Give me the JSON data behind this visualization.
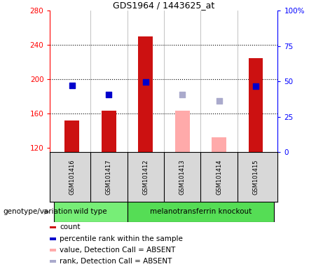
{
  "title": "GDS1964 / 1443625_at",
  "samples": [
    "GSM101416",
    "GSM101417",
    "GSM101412",
    "GSM101413",
    "GSM101414",
    "GSM101415"
  ],
  "sample_x": [
    1,
    2,
    3,
    4,
    5,
    6
  ],
  "bar_heights": [
    152,
    163,
    250,
    null,
    null,
    225
  ],
  "bar_absent_heights": [
    null,
    null,
    null,
    163,
    132,
    null
  ],
  "bar_color_present": "#cc1111",
  "bar_color_absent": "#ffaaaa",
  "dot_present": [
    193,
    182,
    197,
    null,
    null,
    192
  ],
  "dot_absent": [
    null,
    null,
    null,
    182,
    175,
    null
  ],
  "dot_color_present": "#0000cc",
  "dot_color_absent": "#aaaacc",
  "ylim_left": [
    115,
    280
  ],
  "ylim_right": [
    0,
    100
  ],
  "yticks_left": [
    120,
    160,
    200,
    240,
    280
  ],
  "yticks_right": [
    0,
    25,
    50,
    75,
    100
  ],
  "ytick_labels_left": [
    "120",
    "160",
    "200",
    "240",
    "280"
  ],
  "ytick_labels_right": [
    "0",
    "25",
    "50",
    "75",
    "100%"
  ],
  "hlines": [
    160,
    200,
    240
  ],
  "bar_width": 0.4,
  "group_labels": [
    "wild type",
    "melanotransferrin knockout"
  ],
  "group_colors": [
    "#77ee77",
    "#55dd55"
  ],
  "sample_box_color": "#d8d8d8",
  "genotype_label": "genotype/variation",
  "legend_items": [
    {
      "label": "count",
      "color": "#cc1111"
    },
    {
      "label": "percentile rank within the sample",
      "color": "#0000cc"
    },
    {
      "label": "value, Detection Call = ABSENT",
      "color": "#ffaaaa"
    },
    {
      "label": "rank, Detection Call = ABSENT",
      "color": "#aaaacc"
    }
  ],
  "xlim": [
    0.4,
    6.6
  ],
  "dot_size": 35,
  "title_fontsize": 9,
  "tick_fontsize": 7.5,
  "sample_fontsize": 6,
  "legend_fontsize": 7.5
}
